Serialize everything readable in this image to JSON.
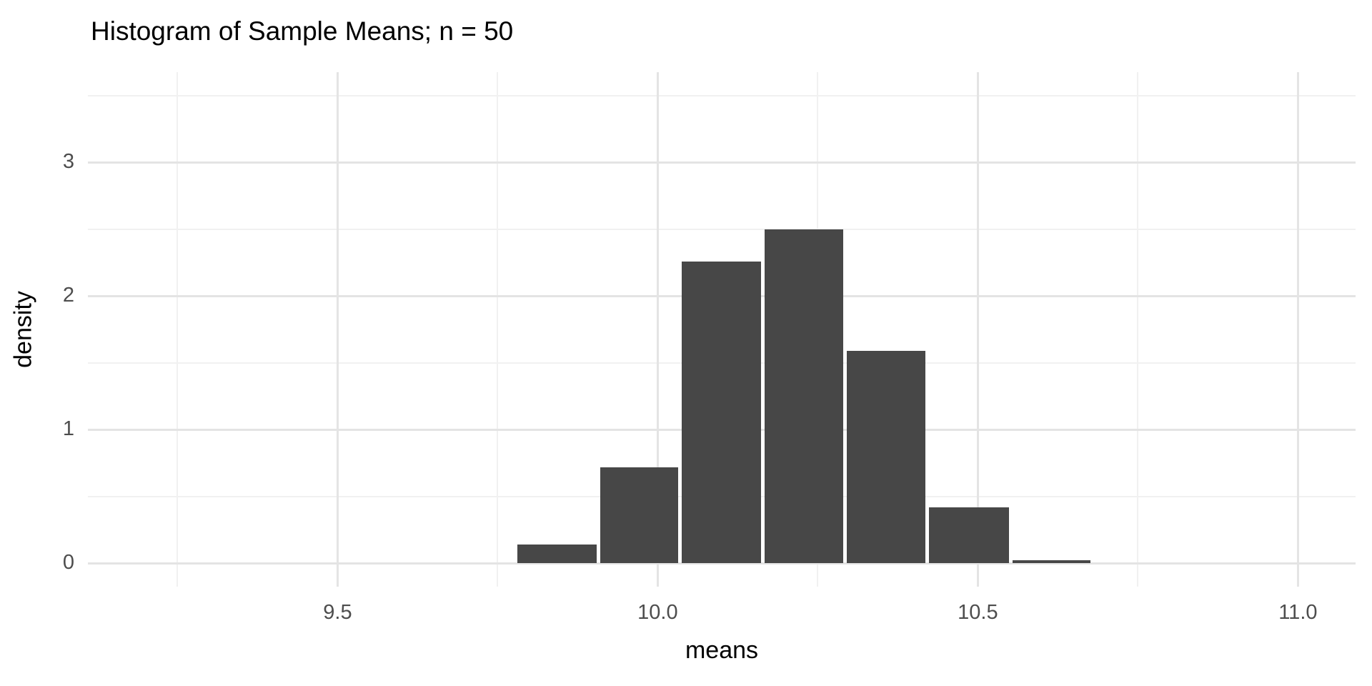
{
  "title": "Histogram of Sample Means; n = 50",
  "chart_data": {
    "type": "bar",
    "subtype": "histogram",
    "title": "Histogram of Sample Means; n = 50",
    "xlabel": "means",
    "ylabel": "density",
    "bin_edges": [
      9.778,
      9.907,
      10.035,
      10.164,
      10.293,
      10.421,
      10.551,
      10.679
    ],
    "densities": [
      0.14,
      0.72,
      2.26,
      2.5,
      1.59,
      0.42,
      0.025
    ],
    "x_ticks": {
      "values": [
        9.5,
        10.0,
        10.5,
        11.0
      ],
      "labels": [
        "9.5",
        "10.0",
        "10.5",
        "11.0"
      ]
    },
    "y_ticks": {
      "values": [
        0,
        1,
        2,
        3
      ],
      "labels": [
        "0",
        "1",
        "2",
        "3"
      ]
    },
    "x_minor": [
      9.25,
      9.75,
      10.25,
      10.75
    ],
    "y_minor": [
      0.5,
      1.5,
      2.5,
      3.5
    ],
    "xlim": [
      9.11,
      11.09
    ],
    "ylim": [
      -0.175,
      3.675
    ],
    "grid": true,
    "legend_position": "none",
    "colors": {
      "bar_fill": "#474747",
      "grid_major": "#e4e4e4",
      "grid_minor": "#f1f1f1",
      "tick_label": "#4d4d4d",
      "axis_title": "#000000",
      "title": "#000000",
      "background": "#ffffff"
    }
  }
}
